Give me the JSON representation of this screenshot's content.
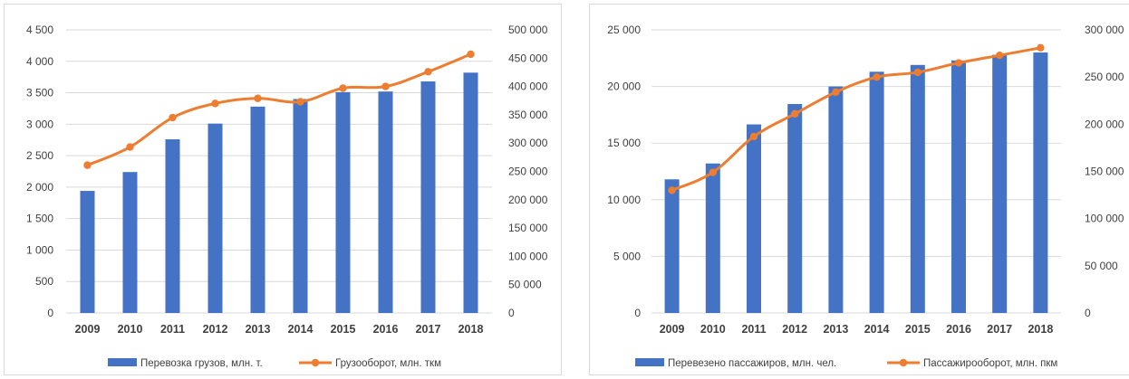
{
  "chart_data": [
    {
      "type": "bar+line",
      "categories": [
        "2009",
        "2010",
        "2011",
        "2012",
        "2013",
        "2014",
        "2015",
        "2016",
        "2017",
        "2018"
      ],
      "series": [
        {
          "name": "Перевозка грузов, млн. т.",
          "type": "bar",
          "axis": "left",
          "color": "#4472C4",
          "values": [
            1940,
            2240,
            2760,
            3010,
            3280,
            3400,
            3510,
            3520,
            3680,
            3820
          ]
        },
        {
          "name": "Грузооборот, млн. ткм",
          "type": "line",
          "axis": "right",
          "color": "#ED7D31",
          "values": [
            261000,
            293000,
            345000,
            370000,
            379000,
            373000,
            397000,
            400000,
            426000,
            457000
          ]
        }
      ],
      "y_left": {
        "min": 0,
        "max": 4500,
        "step": 500,
        "ticks": [
          "0",
          "500",
          "1 000",
          "1 500",
          "2 000",
          "2 500",
          "3 000",
          "3 500",
          "4 000",
          "4 500"
        ]
      },
      "y_right": {
        "min": 0,
        "max": 500000,
        "step": 50000,
        "ticks": [
          "0",
          "50 000",
          "100 000",
          "150 000",
          "200 000",
          "250 000",
          "300 000",
          "350 000",
          "400 000",
          "450 000",
          "500 000"
        ]
      },
      "grid": true,
      "legend": "bottom"
    },
    {
      "type": "bar+line",
      "categories": [
        "2009",
        "2010",
        "2011",
        "2012",
        "2013",
        "2014",
        "2015",
        "2016",
        "2017",
        "2018"
      ],
      "series": [
        {
          "name": "Перевезено пассажиров, млн. чел.",
          "type": "bar",
          "axis": "left",
          "color": "#4472C4",
          "values": [
            11800,
            13200,
            16650,
            18450,
            20000,
            21300,
            21900,
            22300,
            22800,
            23000
          ]
        },
        {
          "name": "Пассажирооборот, млн. пкм",
          "type": "line",
          "axis": "right",
          "color": "#ED7D31",
          "values": [
            130000,
            149000,
            187000,
            211000,
            234000,
            250000,
            255000,
            265000,
            273000,
            281000
          ]
        }
      ],
      "y_left": {
        "min": 0,
        "max": 25000,
        "step": 5000,
        "ticks": [
          "0",
          "5 000",
          "10 000",
          "15 000",
          "20 000",
          "25 000"
        ]
      },
      "y_right": {
        "min": 0,
        "max": 300000,
        "step": 50000,
        "ticks": [
          "0",
          "50 000",
          "100 000",
          "150 000",
          "200 000",
          "250 000",
          "300 000"
        ]
      },
      "grid": true,
      "legend": "bottom"
    }
  ]
}
